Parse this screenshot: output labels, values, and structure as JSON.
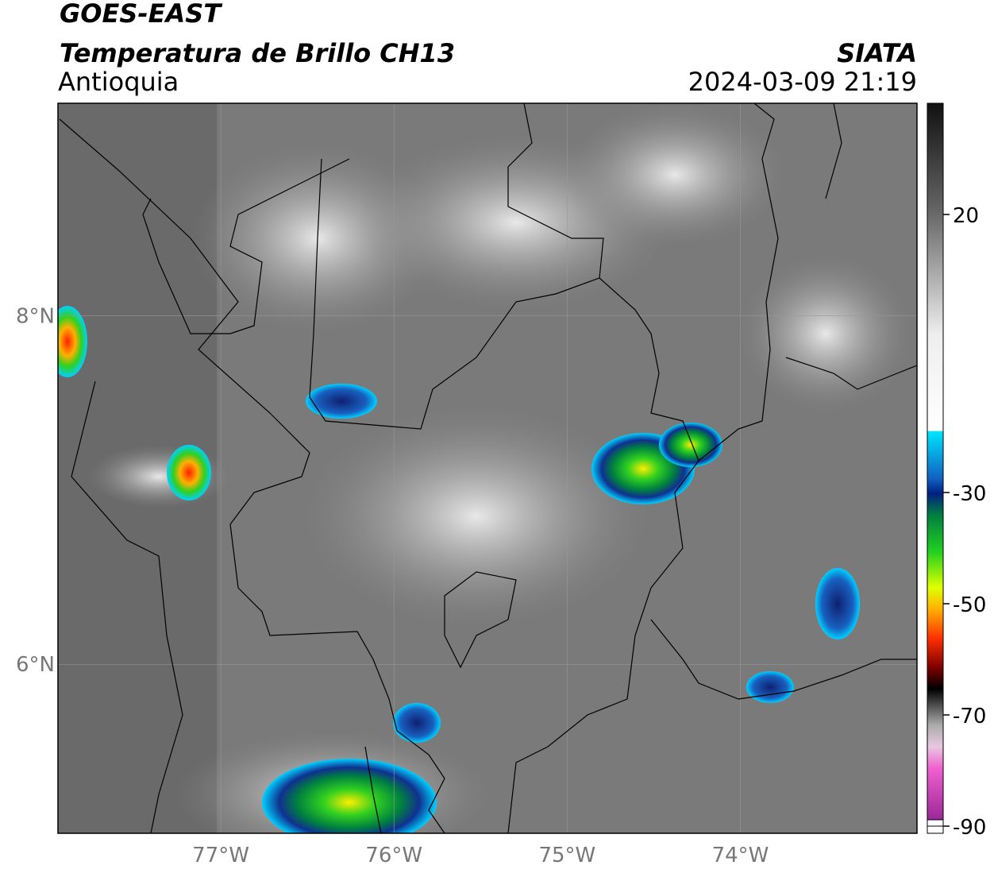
{
  "header": {
    "satellite": "GOES-EAST",
    "product": "Temperatura de Brillo CH13",
    "region": "Antioquia",
    "source": "SIATA",
    "timestamp": "2024-03-09 21:19"
  },
  "map": {
    "xlim": [
      -77.94,
      -72.98
    ],
    "ylim": [
      5.03,
      9.22
    ],
    "xticks": [
      {
        "value": -77,
        "label": "77°W"
      },
      {
        "value": -76,
        "label": "76°W"
      },
      {
        "value": -75,
        "label": "75°W"
      },
      {
        "value": -74,
        "label": "74°W"
      }
    ],
    "yticks": [
      {
        "value": 8,
        "label": "8°N"
      },
      {
        "value": 6,
        "label": "6°N"
      }
    ],
    "grid": true
  },
  "colorbar": {
    "lim": [
      -90,
      40
    ],
    "ticks": [
      20,
      -30,
      -50,
      -70,
      -90
    ]
  }
}
